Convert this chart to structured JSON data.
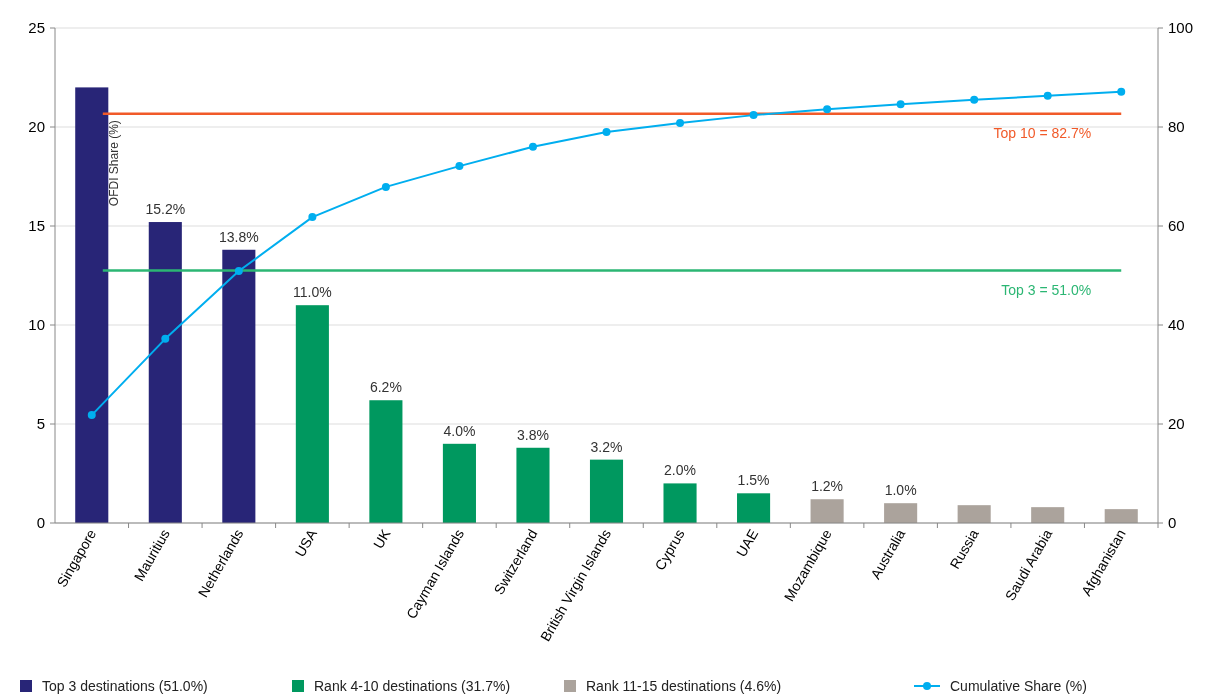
{
  "chart_data": {
    "type": "bar",
    "ylabel": "OFDI Share (%)",
    "categories": [
      "Singapore",
      "Mauritius",
      "Netherlands",
      "USA",
      "UK",
      "Cayman Islands",
      "Switzerland",
      "British Virgin Islands",
      "Cyprus",
      "UAE",
      "Mozambique",
      "Australia",
      "Russia",
      "Saudi Arabia",
      "Afghanistan"
    ],
    "series": [
      {
        "name": "Top 3 destinations (51.0%)",
        "color": "#282577",
        "values": [
          22.0,
          15.2,
          13.8,
          null,
          null,
          null,
          null,
          null,
          null,
          null,
          null,
          null,
          null,
          null,
          null
        ],
        "value_labels": [
          null,
          "15.2%",
          "13.8%",
          null,
          null,
          null,
          null,
          null,
          null,
          null,
          null,
          null,
          null,
          null,
          null
        ]
      },
      {
        "name": "Rank 4-10 destinations (31.7%)",
        "color": "#00985f",
        "values": [
          null,
          null,
          null,
          11.0,
          6.2,
          4.0,
          3.8,
          3.2,
          2.0,
          1.5,
          null,
          null,
          null,
          null,
          null
        ],
        "value_labels": [
          null,
          null,
          null,
          "11.0%",
          "6.2%",
          "4.0%",
          "3.8%",
          "3.2%",
          "2.0%",
          "1.5%",
          null,
          null,
          null,
          null,
          null
        ]
      },
      {
        "name": "Rank 11-15 destinations (4.6%)",
        "color": "#aba39c",
        "values": [
          null,
          null,
          null,
          null,
          null,
          null,
          null,
          null,
          null,
          null,
          1.2,
          1.0,
          0.9,
          0.8,
          0.7
        ],
        "value_labels": [
          null,
          null,
          null,
          null,
          null,
          null,
          null,
          null,
          null,
          null,
          "1.2%",
          "1.0%",
          null,
          null,
          null
        ]
      },
      {
        "name": "Cumulative Share (%)",
        "type": "line",
        "axis": "y2",
        "color": "#00aeef",
        "values": [
          21.8,
          37.2,
          50.9,
          61.8,
          67.9,
          72.1,
          76.0,
          79.0,
          80.8,
          82.4,
          83.6,
          84.6,
          85.5,
          86.3,
          87.1
        ]
      }
    ],
    "ylim": [
      0,
      25
    ],
    "yticks": [
      0,
      5,
      10,
      15,
      20,
      25
    ],
    "y2lim": [
      0,
      100
    ],
    "y2ticks": [
      0,
      20,
      40,
      60,
      80,
      100
    ],
    "ref_lines": [
      {
        "axis": "y2",
        "value": 82.7,
        "label": "Top 10 = 82.7%",
        "color": "#f15a29"
      },
      {
        "axis": "y2",
        "value": 51.0,
        "label": "Top 3 = 51.0%",
        "color": "#2bb673"
      }
    ],
    "grid": "y",
    "legend": "bottom",
    "marker": "circle",
    "line_style": "solid"
  }
}
